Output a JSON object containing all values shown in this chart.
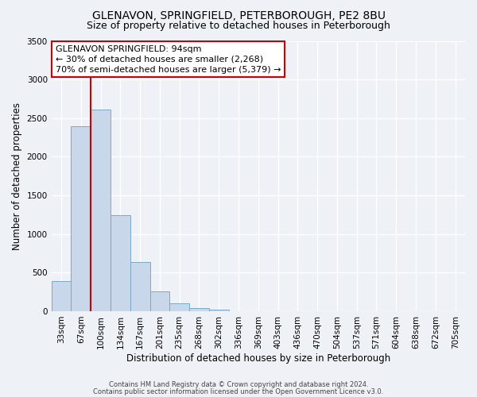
{
  "title": "GLENAVON, SPRINGFIELD, PETERBOROUGH, PE2 8BU",
  "subtitle": "Size of property relative to detached houses in Peterborough",
  "xlabel": "Distribution of detached houses by size in Peterborough",
  "ylabel": "Number of detached properties",
  "bar_labels": [
    "33sqm",
    "67sqm",
    "100sqm",
    "134sqm",
    "167sqm",
    "201sqm",
    "235sqm",
    "268sqm",
    "302sqm",
    "336sqm",
    "369sqm",
    "403sqm",
    "436sqm",
    "470sqm",
    "504sqm",
    "537sqm",
    "571sqm",
    "604sqm",
    "638sqm",
    "672sqm",
    "705sqm"
  ],
  "bar_values": [
    390,
    2395,
    2615,
    1245,
    635,
    260,
    100,
    45,
    20,
    0,
    0,
    0,
    0,
    0,
    0,
    0,
    0,
    0,
    0,
    0,
    0
  ],
  "bar_color": "#c8d8ea",
  "bar_edge_color": "#7aaac8",
  "ylim": [
    0,
    3500
  ],
  "yticks": [
    0,
    500,
    1000,
    1500,
    2000,
    2500,
    3000,
    3500
  ],
  "vline_color": "#cc0000",
  "annotation_title": "GLENAVON SPRINGFIELD: 94sqm",
  "annotation_line1": "← 30% of detached houses are smaller (2,268)",
  "annotation_line2": "70% of semi-detached houses are larger (5,379) →",
  "annotation_box_color": "#ffffff",
  "annotation_box_edge": "#cc0000",
  "footer1": "Contains HM Land Registry data © Crown copyright and database right 2024.",
  "footer2": "Contains public sector information licensed under the Open Government Licence v3.0.",
  "background_color": "#eef2f7",
  "grid_color": "#ffffff",
  "title_fontsize": 10,
  "subtitle_fontsize": 9,
  "axis_label_fontsize": 8.5,
  "tick_fontsize": 7.5,
  "annot_fontsize": 8,
  "footer_fontsize": 6
}
